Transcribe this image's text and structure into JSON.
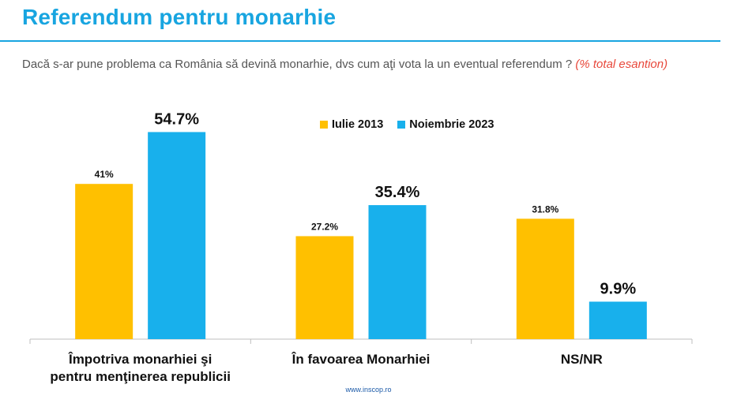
{
  "title": "Referendum pentru monarhie",
  "question": "Dacă s-ar pune problema ca România să devină monarhie, dvs cum aţi vota la un eventual referendum ?",
  "note": "(% total esantion)",
  "footer": "www.inscop.ro",
  "colors": {
    "accent": "#18a5e0",
    "series_2013": "#ffc000",
    "series_2023": "#18b0ec",
    "note": "#e8483b"
  },
  "chart_data": {
    "type": "bar",
    "categories": [
      "Împotriva monarhiei şi pentru menţinerea republicii",
      "În favoarea Monarhiei",
      "NS/NR"
    ],
    "series": [
      {
        "name": "Iulie 2013",
        "values": [
          41,
          27.2,
          31.8
        ],
        "labels": [
          "41%",
          "27.2%",
          "31.8%"
        ],
        "color": "#ffc000"
      },
      {
        "name": "Noiembrie 2023",
        "values": [
          54.7,
          35.4,
          9.9
        ],
        "labels": [
          "54.7%",
          "35.4%",
          "9.9%"
        ],
        "color": "#18b0ec"
      }
    ],
    "ylim": [
      0,
      70
    ],
    "grid": false,
    "legend_position": "top-center"
  }
}
